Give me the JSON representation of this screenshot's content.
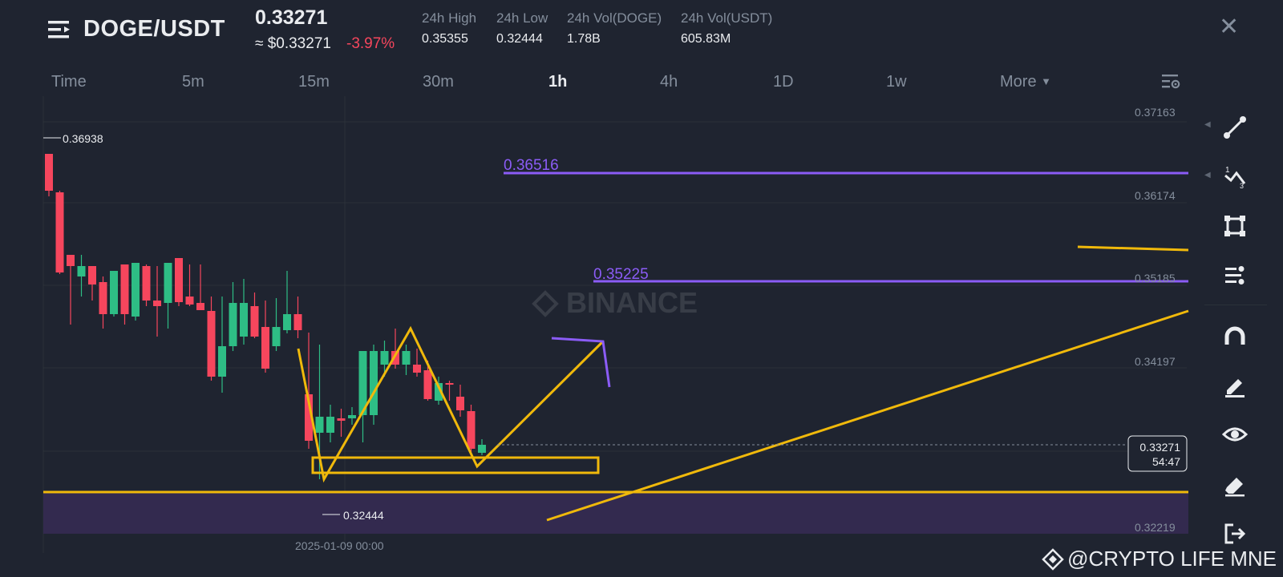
{
  "header": {
    "pair": "DOGE/USDT",
    "price": "0.33271",
    "usd_price": "≈ $0.33271",
    "change": "-3.97%",
    "change_color": "#f6465d",
    "stats": [
      {
        "label": "24h High",
        "value": "0.35355"
      },
      {
        "label": "24h Low",
        "value": "0.32444"
      },
      {
        "label": "24h Vol(DOGE)",
        "value": "1.78B"
      },
      {
        "label": "24h Vol(USDT)",
        "value": "605.83M"
      }
    ],
    "close_icon": "close-icon",
    "menu_icon": "hamburger-menu-icon"
  },
  "timeframes": {
    "items": [
      "Time",
      "5m",
      "15m",
      "30m",
      "1h",
      "4h",
      "1D",
      "1w",
      "More"
    ],
    "active": "1h",
    "more_icon": "caret-down-icon",
    "settings_icon": "chart-settings-icon"
  },
  "chart": {
    "price_axis": [
      "0.37163",
      "0.36174",
      "0.35185",
      "0.34197",
      "0.32219"
    ],
    "time_label": "2025-01-09 00:00",
    "high_marker": "0.36938",
    "low_marker": "0.32444",
    "level_1": "0.36516",
    "level_2": "0.35225",
    "current_price": "0.33271",
    "countdown": "54:47",
    "watermark": "BINANCE",
    "colors": {
      "up": "#2ebd85",
      "down": "#f6465d",
      "drawing": "#f0b90b",
      "level": "#8b5cf6",
      "zone": "#332a4f"
    }
  },
  "sidebar_tools": [
    "trend-line-icon",
    "fibonacci-icon",
    "rectangle-shape-icon",
    "indicator-icon",
    "magnet-icon",
    "pencil-icon",
    "eye-icon",
    "eraser-icon",
    "exit-icon"
  ],
  "credit": "@CRYPTO LIFE MNE"
}
